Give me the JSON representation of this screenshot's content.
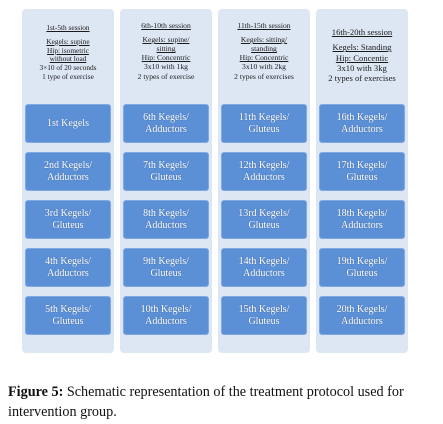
{
  "diagram": {
    "columns": [
      {
        "session": "1st-5th session",
        "kegels": [
          "Kegels: supine"
        ],
        "hip": [
          "Hip: isometric",
          "without load"
        ],
        "dose": "3×10 of 20 seconds",
        "types": "1 type of exercise",
        "boxes": [
          [
            "1st Kegels"
          ],
          [
            "2nd Kegels/",
            "Adductors"
          ],
          [
            "3rd Kegels/",
            "Gluteus"
          ],
          [
            "4th Kegels/",
            "Adductors"
          ],
          [
            "5th Kegels/",
            "Gluteus"
          ]
        ]
      },
      {
        "session": "6th-10th session",
        "kegels": [
          "Kegels: supine/",
          "sitting"
        ],
        "hip": [
          "Hip: Concentric"
        ],
        "dose": "3x10 with 1kg",
        "types": "2 types of exercise",
        "boxes": [
          [
            "6th Kegels/",
            "Adductors"
          ],
          [
            "7th Kegels/",
            "Gluteus"
          ],
          [
            "8th Kegels/",
            "Adductors"
          ],
          [
            "9th Kegels/",
            "Gluteus"
          ],
          [
            "10th Kegels/",
            "Adductors"
          ]
        ]
      },
      {
        "session": "11th-15th session",
        "kegels": [
          "Kegels: sitting/",
          "standing"
        ],
        "hip": [
          "Hip: Concentric"
        ],
        "dose": "3x10 with 2kg",
        "types": "2 types of exercises",
        "boxes": [
          [
            "11th Kegels/",
            "Gluteus"
          ],
          [
            "12th Kegels/",
            "Adductors"
          ],
          [
            "13rd Kegels/",
            "Gluteus"
          ],
          [
            "14th Kegels/",
            "Adductors"
          ],
          [
            "15th Kegels/",
            "Gluteus"
          ]
        ]
      },
      {
        "session": "16th-20th session",
        "kegels": [
          "Kegels: Standing"
        ],
        "hip": [
          "Hip: Concentic"
        ],
        "dose": "3x10 with 3kg",
        "types": "2 types of exercises",
        "boxes": [
          [
            "16th Kegels/",
            "Adductors"
          ],
          [
            "17th Kegels/",
            "Gluteus"
          ],
          [
            "18th Kegels/",
            "Adductors"
          ],
          [
            "19th Kegels/",
            "Gluteus"
          ],
          [
            "20th Kegels/",
            "Adductors"
          ]
        ]
      }
    ]
  },
  "caption": {
    "label": "Figure 5:",
    "text": " Schematic representation of the treatment protocol used for intervention group."
  },
  "colors": {
    "column_background": "#dde6f3",
    "box_fill": "#5b8fd6",
    "box_text": "#ffffff"
  }
}
